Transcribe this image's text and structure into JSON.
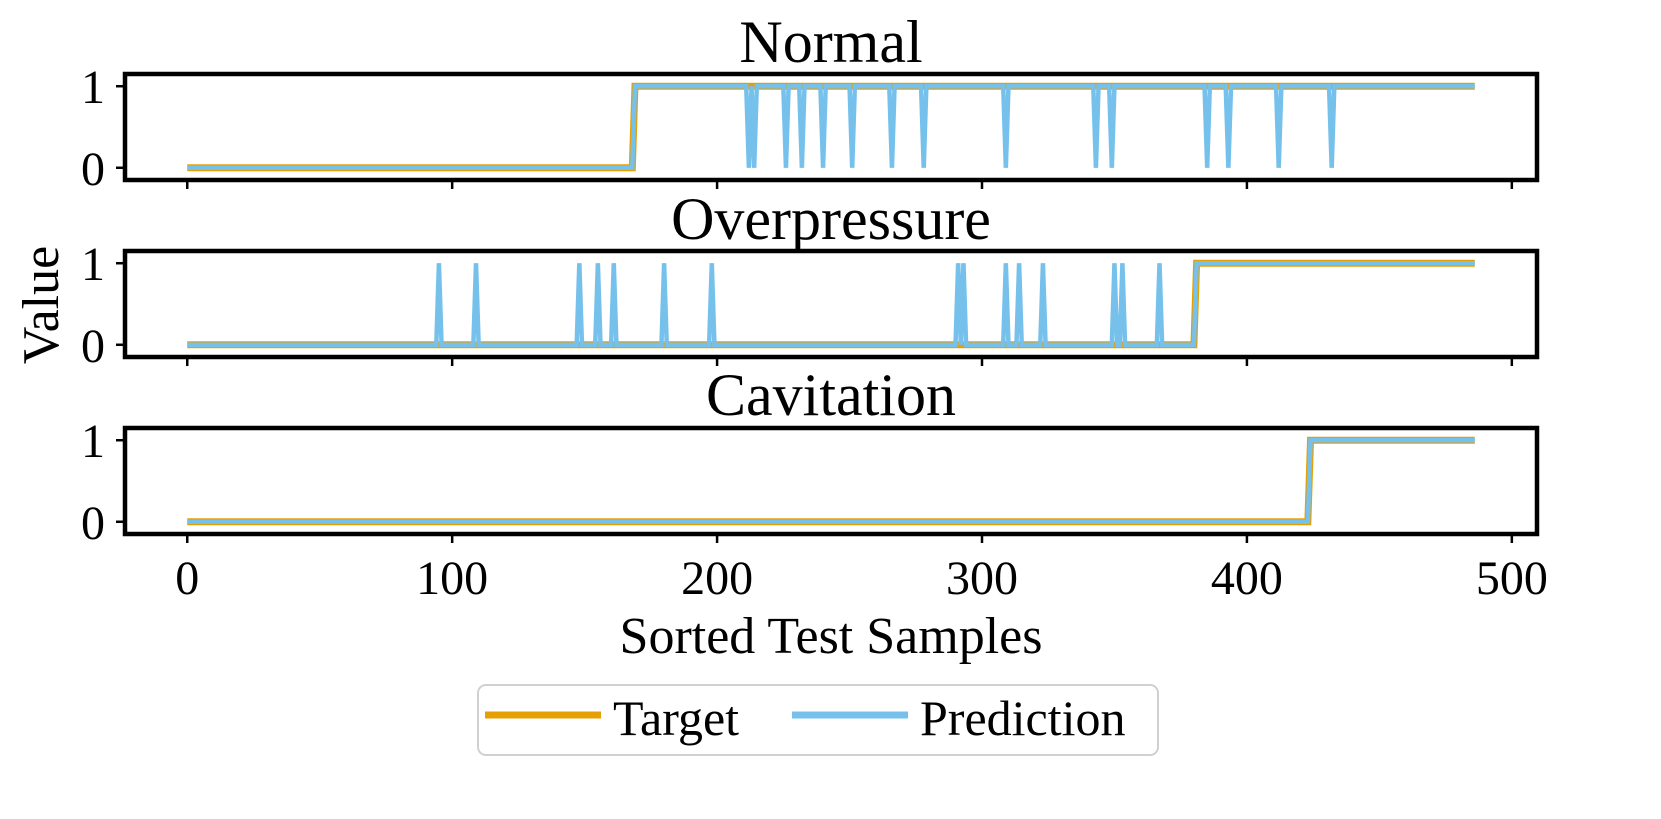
{
  "chart_data": {
    "type": "line",
    "xlabel": "Sorted Test Samples",
    "ylabel": "Value",
    "xlim": [
      -23.5,
      509.5
    ],
    "ylim": [
      -0.15,
      1.15
    ],
    "xticks": [
      0,
      100,
      200,
      300,
      400,
      500
    ],
    "yticks": [
      0,
      1
    ],
    "grid": false,
    "legend": {
      "placement": "bottom-center",
      "entries": [
        {
          "name": "Target",
          "color": "#E69F00"
        },
        {
          "name": "Prediction",
          "color": "#56B4E9"
        }
      ]
    },
    "n_samples": 486,
    "colors": {
      "target": "#E69F00",
      "prediction": "#76C1EC",
      "frame": "#000000"
    },
    "panels": [
      {
        "title": "Normal",
        "target_steps": [
          {
            "x": 0,
            "y": 0
          },
          {
            "x": 169,
            "y": 1
          }
        ],
        "prediction_spikes": [
          {
            "x": 212,
            "y": 0
          },
          {
            "x": 214,
            "y": 0
          },
          {
            "x": 226,
            "y": 0
          },
          {
            "x": 232,
            "y": 0
          },
          {
            "x": 240,
            "y": 0
          },
          {
            "x": 251,
            "y": 0
          },
          {
            "x": 266,
            "y": 0
          },
          {
            "x": 278,
            "y": 0
          },
          {
            "x": 309,
            "y": 0
          },
          {
            "x": 343,
            "y": 0
          },
          {
            "x": 349,
            "y": 0
          },
          {
            "x": 385,
            "y": 0
          },
          {
            "x": 393,
            "y": 0
          },
          {
            "x": 412,
            "y": 0
          },
          {
            "x": 432,
            "y": 0
          }
        ]
      },
      {
        "title": "Overpressure",
        "target_steps": [
          {
            "x": 0,
            "y": 0
          },
          {
            "x": 381,
            "y": 1
          }
        ],
        "prediction_spikes": [
          {
            "x": 95,
            "y": 1
          },
          {
            "x": 109,
            "y": 1
          },
          {
            "x": 148,
            "y": 1
          },
          {
            "x": 155,
            "y": 1
          },
          {
            "x": 161,
            "y": 1
          },
          {
            "x": 180,
            "y": 1
          },
          {
            "x": 198,
            "y": 1
          },
          {
            "x": 291,
            "y": 1
          },
          {
            "x": 293,
            "y": 1
          },
          {
            "x": 309,
            "y": 1
          },
          {
            "x": 314,
            "y": 1
          },
          {
            "x": 323,
            "y": 1
          },
          {
            "x": 350,
            "y": 1
          },
          {
            "x": 353,
            "y": 1
          },
          {
            "x": 367,
            "y": 1
          }
        ]
      },
      {
        "title": "Cavitation",
        "target_steps": [
          {
            "x": 0,
            "y": 0
          },
          {
            "x": 424,
            "y": 1
          }
        ],
        "prediction_spikes": []
      }
    ]
  }
}
